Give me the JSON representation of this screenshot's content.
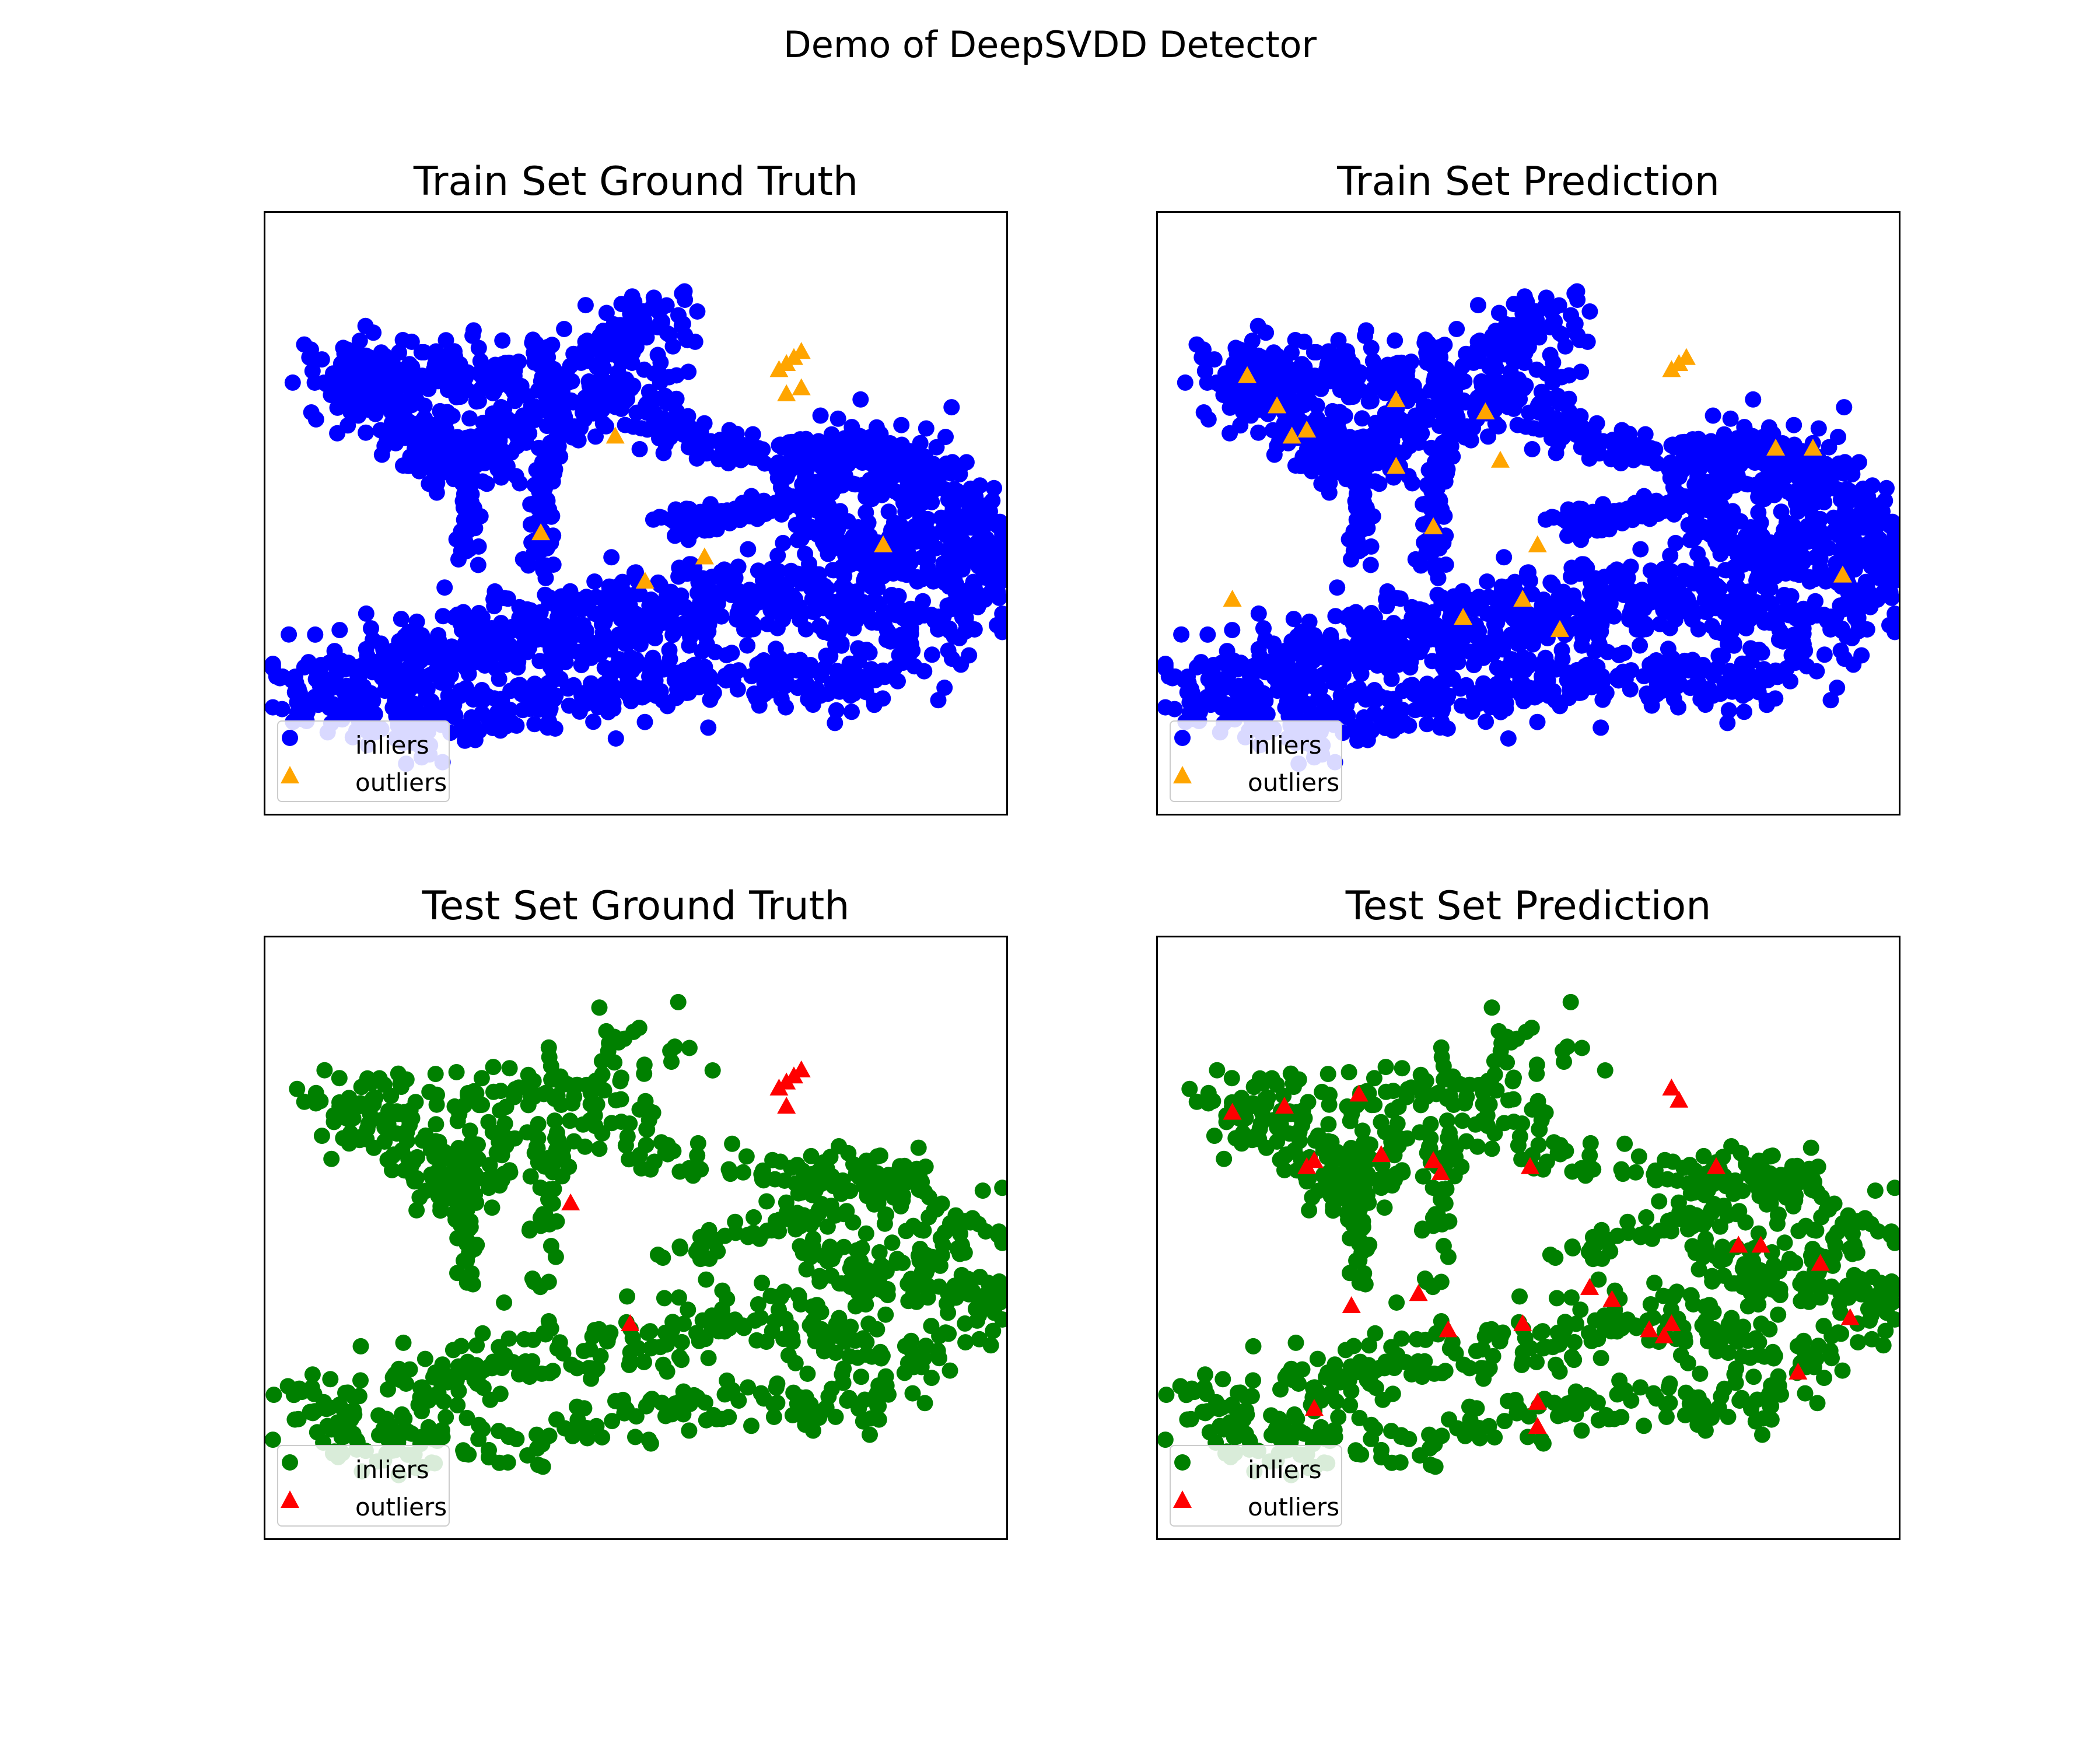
{
  "title": "Demo of DeepSVDD Detector",
  "chart_data": [
    {
      "type": "scatter",
      "title": "Train Set Ground Truth",
      "xlabel": "",
      "ylabel": "",
      "xlim": [
        0,
        100
      ],
      "ylim": [
        0,
        100
      ],
      "ticks": false,
      "legend": "lower-left",
      "inlier_color": "#0000ff",
      "outlier_color": "#ffa500",
      "inlier_marker": "circle",
      "outlier_marker": "triangle",
      "series": [
        {
          "name": "inliers",
          "points": "dense_blue_cluster"
        },
        {
          "name": "outliers",
          "x": [
            69,
            70,
            71,
            72,
            70,
            72,
            47,
            59,
            37,
            51,
            83
          ],
          "y": [
            74,
            75,
            76,
            77,
            70,
            71,
            63,
            43,
            47,
            39,
            45
          ]
        }
      ]
    },
    {
      "type": "scatter",
      "title": "Train Set Prediction",
      "xlabel": "",
      "ylabel": "",
      "xlim": [
        0,
        100
      ],
      "ylim": [
        0,
        100
      ],
      "ticks": false,
      "legend": "lower-left",
      "inlier_color": "#0000ff",
      "outlier_color": "#ffa500",
      "inlier_marker": "circle",
      "outlier_marker": "triangle",
      "series": [
        {
          "name": "inliers",
          "points": "dense_blue_cluster"
        },
        {
          "name": "outliers",
          "x": [
            12,
            16,
            18,
            20,
            32,
            32,
            44,
            46,
            37,
            51,
            54,
            41,
            49,
            83,
            88,
            10,
            69,
            70,
            71,
            92
          ],
          "y": [
            73,
            68,
            63,
            64,
            69,
            58,
            67,
            59,
            48,
            45,
            31,
            33,
            36,
            61,
            61,
            36,
            74,
            75,
            76,
            40
          ]
        }
      ]
    },
    {
      "type": "scatter",
      "title": "Test Set Ground Truth",
      "xlabel": "",
      "ylabel": "",
      "xlim": [
        0,
        100
      ],
      "ylim": [
        0,
        100
      ],
      "ticks": false,
      "legend": "lower-left",
      "inlier_color": "#008000",
      "outlier_color": "#ff0000",
      "inlier_marker": "circle",
      "outlier_marker": "triangle",
      "series": [
        {
          "name": "inliers",
          "points": "dense_green_cluster"
        },
        {
          "name": "outliers",
          "x": [
            69,
            70,
            71,
            72,
            70,
            41,
            49
          ],
          "y": [
            75,
            76,
            77,
            78,
            72,
            56,
            36
          ]
        }
      ]
    },
    {
      "type": "scatter",
      "title": "Test Set Prediction",
      "xlabel": "",
      "ylabel": "",
      "xlim": [
        0,
        100
      ],
      "ylim": [
        0,
        100
      ],
      "ticks": false,
      "legend": "lower-left",
      "inlier_color": "#008000",
      "outlier_color": "#ff0000",
      "inlier_marker": "circle",
      "outlier_marker": "triangle",
      "series": [
        {
          "name": "inliers",
          "points": "dense_green_cluster"
        },
        {
          "name": "outliers",
          "x": [
            10,
            17,
            27,
            21,
            20,
            30,
            37,
            38,
            50,
            75,
            78,
            81,
            89,
            93,
            26,
            35,
            39,
            49,
            58,
            61,
            66,
            68,
            69,
            86,
            21,
            51,
            51,
            69,
            70
          ],
          "y": [
            71,
            72,
            74,
            63,
            62,
            64,
            63,
            61,
            62,
            62,
            49,
            49,
            46,
            37,
            39,
            41,
            35,
            36,
            42,
            40,
            35,
            34,
            36,
            28,
            22,
            23,
            19,
            75,
            73
          ]
        }
      ]
    }
  ],
  "legend": {
    "inliers_label": "inliers",
    "outliers_label": "outliers"
  }
}
